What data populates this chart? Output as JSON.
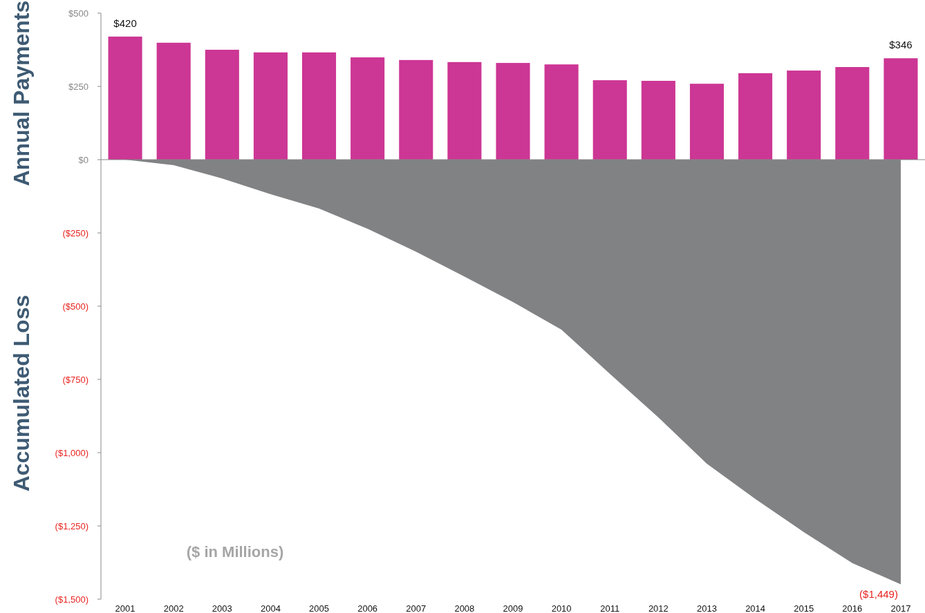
{
  "chart_data": {
    "type": "bar",
    "ylabel": "Annual Payments",
    "annotations": [
      "Accumulated Loss",
      "($ in Millions)"
    ],
    "categories": [
      "2001",
      "2002",
      "2003",
      "2004",
      "2005",
      "2006",
      "2007",
      "2008",
      "2009",
      "2010",
      "2011",
      "2012",
      "2013",
      "2014",
      "2015",
      "2016",
      "2017"
    ],
    "series": [
      {
        "color": "#cc3694",
        "values": [
          420,
          399,
          375,
          366,
          366,
          349,
          340,
          333,
          330,
          325,
          271,
          269,
          259,
          295,
          304,
          316,
          346
        ],
        "value_labels": [
          "$420",
          null,
          null,
          null,
          null,
          null,
          null,
          null,
          null,
          null,
          null,
          null,
          null,
          null,
          null,
          null,
          "$346"
        ]
      },
      {
        "type": "area",
        "color": "#818284",
        "values": [
          0,
          -19,
          -64,
          -118,
          -167,
          -236,
          -314,
          -399,
          -486,
          -580,
          -731,
          -880,
          -1038,
          -1158,
          -1271,
          -1377,
          -1449
        ],
        "value_labels": [
          null,
          null,
          null,
          null,
          null,
          null,
          null,
          null,
          null,
          null,
          null,
          null,
          null,
          null,
          null,
          null,
          "($1,449)"
        ]
      }
    ],
    "ylim": [
      -1500,
      500
    ],
    "yticks": [
      {
        "value": 500,
        "label": "$500"
      },
      {
        "value": 250,
        "label": "$250"
      },
      {
        "value": 0,
        "label": "$0"
      },
      {
        "value": -250,
        "label": "($250)"
      },
      {
        "value": -500,
        "label": "($500)"
      },
      {
        "value": -750,
        "label": "($750)"
      },
      {
        "value": -1000,
        "label": "($1,000)"
      },
      {
        "value": -1250,
        "label": "($1,250)"
      },
      {
        "value": -1500,
        "label": "($1,500)"
      }
    ]
  }
}
